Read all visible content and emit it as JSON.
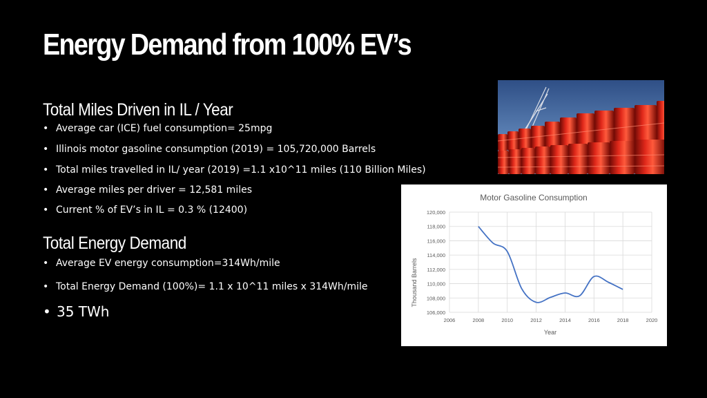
{
  "slide": {
    "title": "Energy Demand from 100% EV’s"
  },
  "section1": {
    "heading": "Total Miles Driven in IL / Year",
    "bullets": [
      "Average car (ICE) fuel consumption= 25mpg",
      "Illinois motor gasoline consumption (2019) = 105,720,000 Barrels",
      "Total miles travelled in IL/ year (2019) =1.1 x10^11 miles (110 Billion Miles)",
      "Average miles per driver = 12,581 miles",
      "Current % of EV’s in IL = 0.3 % (12400)"
    ]
  },
  "section2": {
    "heading": "Total Energy Demand",
    "bullets": [
      "Average EV energy consumption=314Wh/mile",
      "Total Energy Demand (100%)= 1.1 x 10^11 miles x 314Wh/mile",
      "35 TWh"
    ]
  },
  "bullet_char": "•",
  "chart_data": {
    "type": "line",
    "title": "Motor Gasoline Consumption",
    "xlabel": "Year",
    "ylabel": "Thousand Barrels",
    "xlim": [
      2006,
      2020
    ],
    "ylim": [
      106000,
      120000
    ],
    "x_ticks": [
      "2006",
      "2008",
      "2010",
      "2012",
      "2014",
      "2016",
      "2018",
      "2020"
    ],
    "y_ticks": [
      "106,000",
      "108,000",
      "110,000",
      "112,000",
      "114,000",
      "116,000",
      "118,000",
      "120,000"
    ],
    "grid": true,
    "series": [
      {
        "x": [
          2008,
          2009,
          2010,
          2011,
          2012,
          2013,
          2014,
          2015,
          2016,
          2017,
          2018
        ],
        "y": [
          118000,
          115700,
          114500,
          109300,
          107400,
          108100,
          108700,
          108300,
          111000,
          110200,
          109200
        ],
        "color": "#4472c4"
      }
    ]
  }
}
